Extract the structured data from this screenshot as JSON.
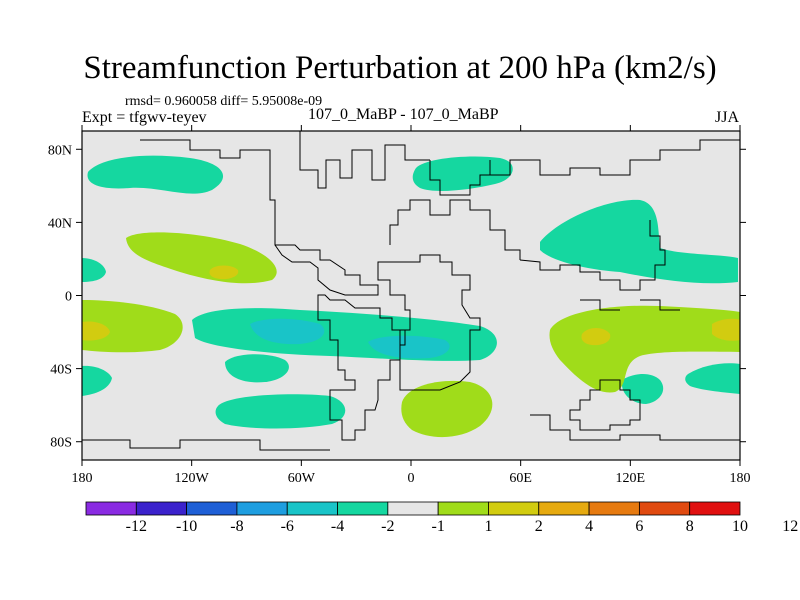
{
  "title": "Streamfunction Perturbation at 200 hPa (km2/s)",
  "stats": "rmsd= 0.960058 diff= 5.95008e-09",
  "experiment": "Expt = tfgwv-teyev",
  "runs": "107_0_MaBP - 107_0_MaBP",
  "season": "JJA",
  "lat_labels": [
    "80N",
    "40N",
    "0",
    "40S",
    "80S"
  ],
  "lat_values": [
    80,
    40,
    0,
    -40,
    -80
  ],
  "lon_labels": [
    "180",
    "120W",
    "60W",
    "0",
    "60E",
    "120E",
    "180"
  ],
  "lon_values": [
    -180,
    -120,
    -60,
    0,
    60,
    120,
    180
  ],
  "colorbar": {
    "colors": [
      "#8a2be2",
      "#3b22cc",
      "#1e5fd6",
      "#1e9ee0",
      "#19c4c8",
      "#15d7a0",
      "#e6e6e6",
      "#a0dc1a",
      "#d2cc10",
      "#e6aa10",
      "#e67a10",
      "#e04a10",
      "#e01010"
    ],
    "labels": [
      "-12",
      "-10",
      "-8",
      "-6",
      "-4",
      "-2",
      "-1",
      "1",
      "2",
      "4",
      "6",
      "8",
      "10",
      "12"
    ]
  },
  "fill_colors": {
    "neg2": "#15d7a0",
    "neg4": "#19c4c8",
    "pos1": "#a0dc1a",
    "pos2": "#d2cc10",
    "background": "#e6e6e6"
  }
}
